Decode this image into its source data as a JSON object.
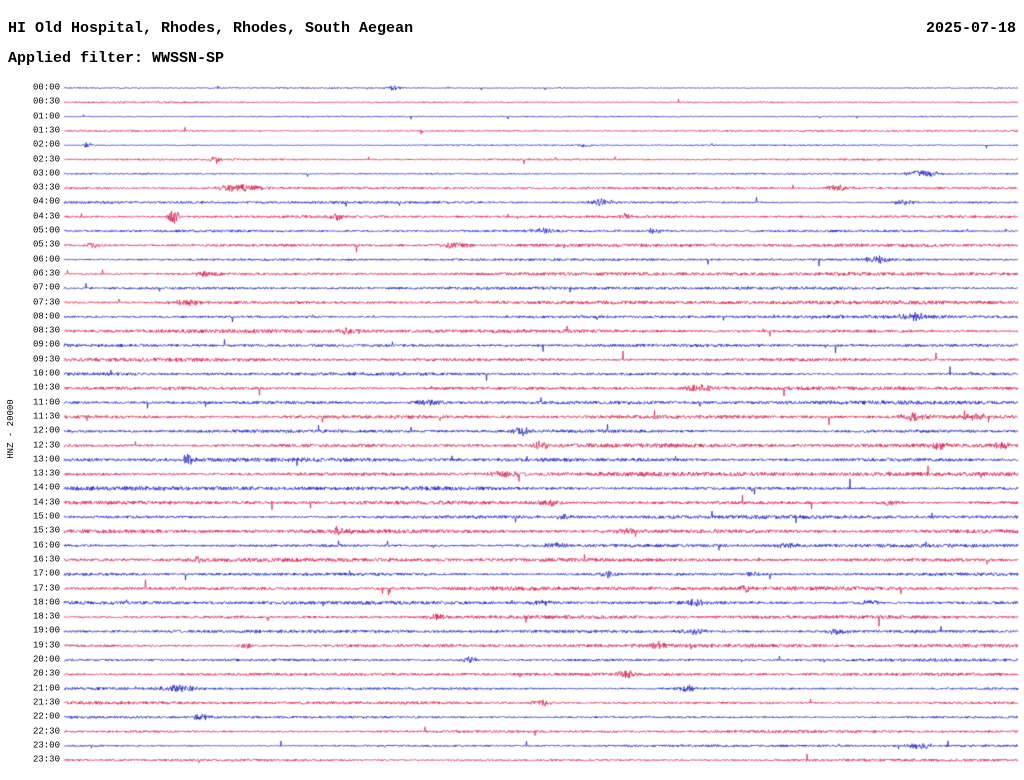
{
  "header": {
    "title": "HI Old Hospital, Rhodes, Rhodes, South Aegean",
    "date": "2025-07-18",
    "filter": "Applied filter: WWSSN-SP"
  },
  "axis": {
    "left_label": "HNZ - 20000"
  },
  "chart_data": {
    "type": "seismogram-helicorder",
    "title": "HI Old Hospital, Rhodes, Rhodes, South Aegean",
    "date": "2025-07-18",
    "channel": "HNZ - 20000",
    "filter": "WWSSN-SP",
    "row_interval_minutes": 30,
    "grid": false,
    "legend": false,
    "colors": {
      "blue": "#0000bf",
      "red": "#d4003c"
    },
    "rows": [
      {
        "label": "00:00",
        "color": "blue",
        "amp": 0.6
      },
      {
        "label": "00:30",
        "color": "red",
        "amp": 0.8
      },
      {
        "label": "01:00",
        "color": "blue",
        "amp": 0.6
      },
      {
        "label": "01:30",
        "color": "red",
        "amp": 0.9
      },
      {
        "label": "02:00",
        "color": "blue",
        "amp": 0.7
      },
      {
        "label": "02:30",
        "color": "red",
        "amp": 1.0
      },
      {
        "label": "03:00",
        "color": "blue",
        "amp": 0.8
      },
      {
        "label": "03:30",
        "color": "red",
        "amp": 1.3
      },
      {
        "label": "04:00",
        "color": "blue",
        "amp": 1.2
      },
      {
        "label": "04:30",
        "color": "red",
        "amp": 1.4
      },
      {
        "label": "05:00",
        "color": "blue",
        "amp": 1.2
      },
      {
        "label": "05:30",
        "color": "red",
        "amp": 1.5
      },
      {
        "label": "06:00",
        "color": "blue",
        "amp": 1.2
      },
      {
        "label": "06:30",
        "color": "red",
        "amp": 1.6
      },
      {
        "label": "07:00",
        "color": "blue",
        "amp": 1.4
      },
      {
        "label": "07:30",
        "color": "red",
        "amp": 1.7
      },
      {
        "label": "08:00",
        "color": "blue",
        "amp": 1.5
      },
      {
        "label": "08:30",
        "color": "red",
        "amp": 1.8
      },
      {
        "label": "09:00",
        "color": "blue",
        "amp": 1.6
      },
      {
        "label": "09:30",
        "color": "red",
        "amp": 1.8
      },
      {
        "label": "10:00",
        "color": "blue",
        "amp": 1.6
      },
      {
        "label": "10:30",
        "color": "red",
        "amp": 1.9
      },
      {
        "label": "11:00",
        "color": "blue",
        "amp": 1.7
      },
      {
        "label": "11:30",
        "color": "red",
        "amp": 1.9
      },
      {
        "label": "12:00",
        "color": "blue",
        "amp": 1.7
      },
      {
        "label": "12:30",
        "color": "red",
        "amp": 2.0
      },
      {
        "label": "13:00",
        "color": "blue",
        "amp": 1.8
      },
      {
        "label": "13:30",
        "color": "red",
        "amp": 2.0
      },
      {
        "label": "14:00",
        "color": "blue",
        "amp": 1.8
      },
      {
        "label": "14:30",
        "color": "red",
        "amp": 1.9
      },
      {
        "label": "15:00",
        "color": "blue",
        "amp": 1.7
      },
      {
        "label": "15:30",
        "color": "red",
        "amp": 1.9
      },
      {
        "label": "16:00",
        "color": "blue",
        "amp": 1.7
      },
      {
        "label": "16:30",
        "color": "red",
        "amp": 1.8
      },
      {
        "label": "17:00",
        "color": "blue",
        "amp": 1.6
      },
      {
        "label": "17:30",
        "color": "red",
        "amp": 1.8
      },
      {
        "label": "18:00",
        "color": "blue",
        "amp": 1.6
      },
      {
        "label": "18:30",
        "color": "red",
        "amp": 1.7
      },
      {
        "label": "19:00",
        "color": "blue",
        "amp": 1.5
      },
      {
        "label": "19:30",
        "color": "red",
        "amp": 1.7
      },
      {
        "label": "20:00",
        "color": "blue",
        "amp": 1.4
      },
      {
        "label": "20:30",
        "color": "red",
        "amp": 1.6
      },
      {
        "label": "21:00",
        "color": "blue",
        "amp": 1.3
      },
      {
        "label": "21:30",
        "color": "red",
        "amp": 1.5
      },
      {
        "label": "22:00",
        "color": "blue",
        "amp": 1.2
      },
      {
        "label": "22:30",
        "color": "red",
        "amp": 1.4
      },
      {
        "label": "23:00",
        "color": "blue",
        "amp": 1.1
      },
      {
        "label": "23:30",
        "color": "red",
        "amp": 1.3
      }
    ],
    "event_fields": [
      "row_index",
      "position_fraction",
      "amplitude_px",
      "sigma_px"
    ],
    "events": [
      [
        0,
        0.345,
        2.5,
        4
      ],
      [
        4,
        0.025,
        3.0,
        3
      ],
      [
        4,
        0.545,
        2.0,
        5
      ],
      [
        5,
        0.16,
        4.0,
        4
      ],
      [
        6,
        0.9,
        3.5,
        12
      ],
      [
        7,
        0.185,
        3.5,
        18
      ],
      [
        7,
        0.81,
        3.0,
        10
      ],
      [
        8,
        0.565,
        3.5,
        10
      ],
      [
        8,
        0.88,
        2.5,
        8
      ],
      [
        9,
        0.115,
        8.0,
        4
      ],
      [
        9,
        0.285,
        3.0,
        6
      ],
      [
        9,
        0.59,
        3.0,
        6
      ],
      [
        10,
        0.5,
        2.5,
        8
      ],
      [
        10,
        0.62,
        2.5,
        8
      ],
      [
        11,
        0.03,
        3.0,
        6
      ],
      [
        11,
        0.41,
        3.0,
        10
      ],
      [
        12,
        0.855,
        3.0,
        10
      ],
      [
        13,
        0.15,
        2.5,
        10
      ],
      [
        15,
        0.13,
        3.0,
        14
      ],
      [
        16,
        0.89,
        3.5,
        10
      ],
      [
        17,
        0.3,
        2.5,
        8
      ],
      [
        21,
        0.665,
        3.5,
        10
      ],
      [
        22,
        0.385,
        3.0,
        12
      ],
      [
        23,
        0.89,
        3.5,
        10
      ],
      [
        23,
        0.955,
        3.0,
        8
      ],
      [
        24,
        0.48,
        3.5,
        8
      ],
      [
        25,
        0.5,
        3.5,
        8
      ],
      [
        25,
        0.92,
        3.5,
        8
      ],
      [
        25,
        0.985,
        3.0,
        6
      ],
      [
        26,
        0.13,
        5.0,
        4
      ],
      [
        27,
        0.46,
        3.5,
        10
      ],
      [
        29,
        0.51,
        3.0,
        8
      ],
      [
        29,
        0.865,
        3.0,
        8
      ],
      [
        30,
        0.525,
        3.5,
        5
      ],
      [
        31,
        0.29,
        3.0,
        8
      ],
      [
        31,
        0.59,
        2.5,
        8
      ],
      [
        32,
        0.515,
        3.0,
        8
      ],
      [
        32,
        0.76,
        2.5,
        8
      ],
      [
        33,
        0.135,
        3.0,
        8
      ],
      [
        34,
        0.57,
        3.0,
        5
      ],
      [
        34,
        0.72,
        2.5,
        6
      ],
      [
        35,
        0.715,
        3.5,
        5
      ],
      [
        36,
        0.5,
        3.0,
        8
      ],
      [
        36,
        0.66,
        3.0,
        8
      ],
      [
        36,
        0.845,
        3.0,
        8
      ],
      [
        37,
        0.39,
        3.0,
        6
      ],
      [
        38,
        0.66,
        2.5,
        8
      ],
      [
        38,
        0.81,
        2.5,
        8
      ],
      [
        39,
        0.19,
        2.5,
        6
      ],
      [
        39,
        0.625,
        3.0,
        8
      ],
      [
        40,
        0.425,
        3.5,
        5
      ],
      [
        41,
        0.59,
        3.0,
        8
      ],
      [
        42,
        0.12,
        3.5,
        14
      ],
      [
        42,
        0.655,
        3.0,
        8
      ],
      [
        43,
        0.5,
        3.0,
        8
      ],
      [
        44,
        0.145,
        3.5,
        6
      ],
      [
        46,
        0.9,
        3.0,
        10
      ]
    ]
  }
}
